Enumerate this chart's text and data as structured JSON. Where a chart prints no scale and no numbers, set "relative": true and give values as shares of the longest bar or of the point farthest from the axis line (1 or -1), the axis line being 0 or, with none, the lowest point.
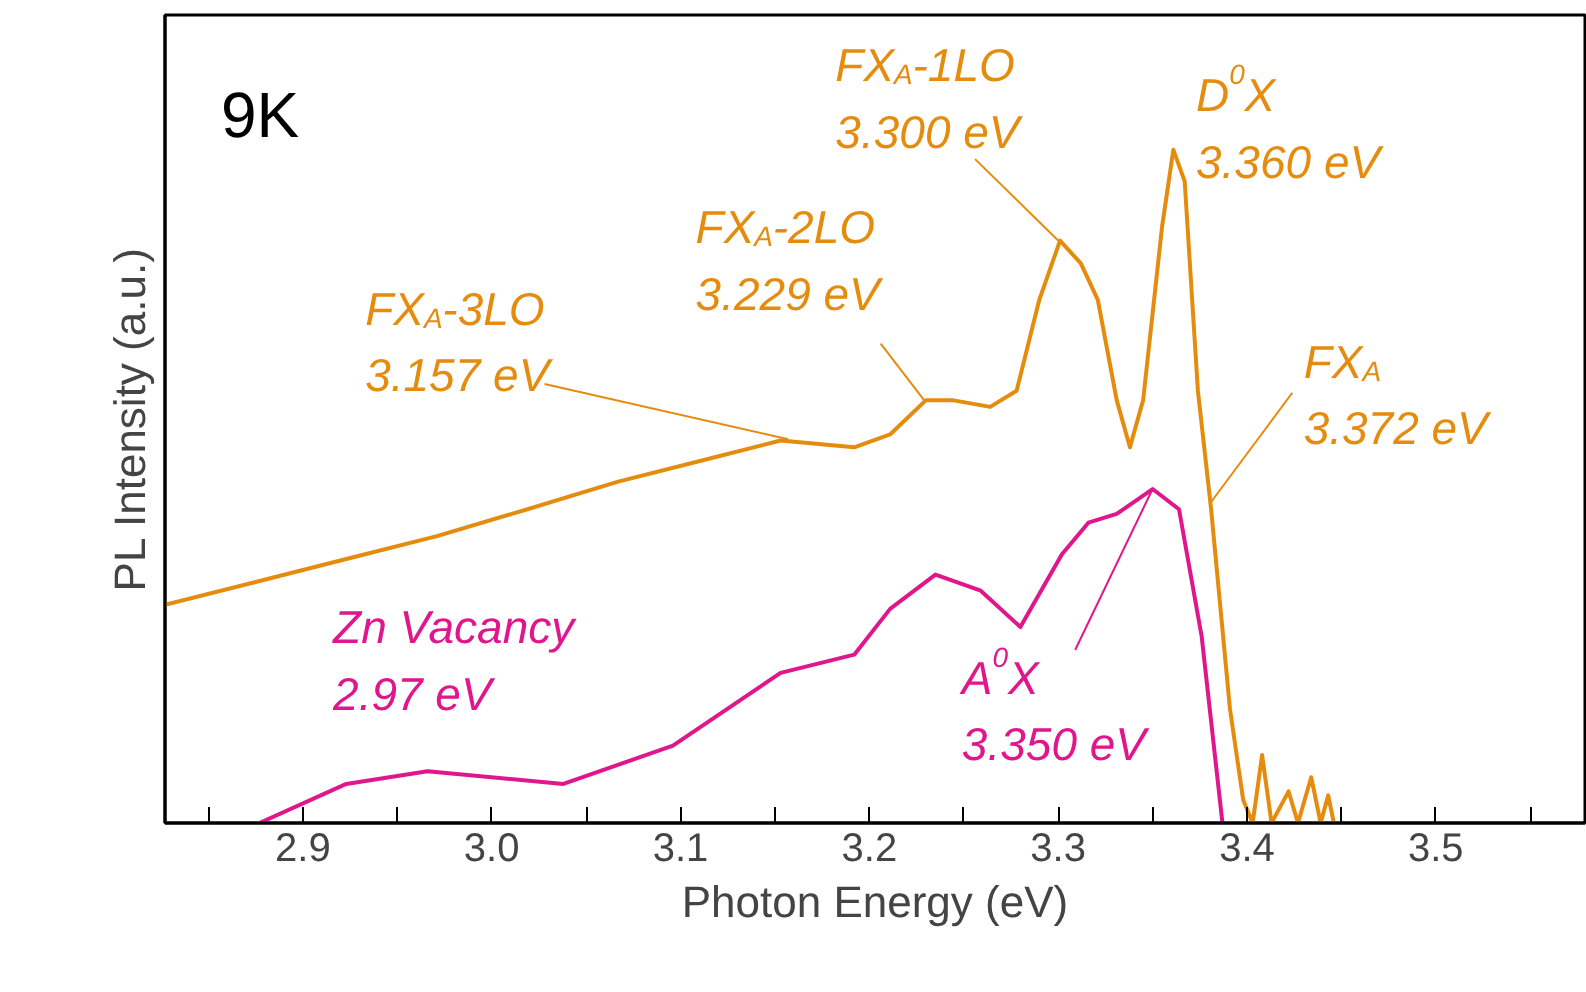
{
  "chart_data": {
    "type": "line",
    "relative": true,
    "xlabel": "Photon Energy (eV)",
    "ylabel": "PL Intensity (a.u.)",
    "xlim": [
      2.827,
      3.579
    ],
    "xticks": [
      {
        "value": 2.85,
        "label": null
      },
      2.9,
      {
        "value": 2.95,
        "label": null
      },
      {
        "value": 3.0,
        "label": "3.0"
      },
      {
        "value": 3.05,
        "label": null
      },
      3.1,
      {
        "value": 3.15,
        "label": null
      },
      3.2,
      {
        "value": 3.25,
        "label": null
      },
      3.3,
      {
        "value": 3.35,
        "label": null
      },
      3.4,
      {
        "value": 3.45,
        "label": null
      },
      3.5,
      {
        "value": 3.55,
        "label": null
      }
    ],
    "series": [
      {
        "color": "#e58c0e",
        "x": [
          2.827,
          2.875,
          2.923,
          2.971,
          3.019,
          3.067,
          3.115,
          3.153,
          3.192,
          3.211,
          3.23,
          3.244,
          3.264,
          3.278,
          3.29,
          3.301,
          3.312,
          3.321,
          3.331,
          3.338,
          3.345,
          3.355,
          3.361,
          3.367,
          3.374,
          3.381,
          3.391,
          3.398,
          3.403,
          3.408,
          3.413,
          3.422,
          3.427,
          3.434,
          3.439,
          3.443,
          3.446
        ],
        "values": [
          0.324,
          0.358,
          0.392,
          0.426,
          0.466,
          0.507,
          0.541,
          0.568,
          0.558,
          0.577,
          0.628,
          0.628,
          0.618,
          0.642,
          0.777,
          0.865,
          0.831,
          0.777,
          0.628,
          0.558,
          0.628,
          0.885,
          1.0,
          0.953,
          0.642,
          0.466,
          0.169,
          0.034,
          0,
          0.101,
          0,
          0.047,
          0,
          0.068,
          0,
          0.041,
          0
        ]
      },
      {
        "color": "#e0168c",
        "x": [
          2.877,
          2.923,
          2.966,
          3.038,
          3.096,
          3.153,
          3.192,
          3.211,
          3.235,
          3.259,
          3.28,
          3.302,
          3.316,
          3.331,
          3.35,
          3.364,
          3.376,
          3.387
        ],
        "values": [
          0,
          0.058,
          0.077,
          0.058,
          0.115,
          0.223,
          0.25,
          0.318,
          0.369,
          0.345,
          0.291,
          0.399,
          0.446,
          0.459,
          0.496,
          0.466,
          0.277,
          0
        ]
      }
    ],
    "annotations": [
      "9K",
      {
        "text": "FX$_{A}$-3LO\n3.157 eV",
        "x": 3.157,
        "y": 0.57
      },
      {
        "text": "FX$_{A}$-2LO\n3.229 eV",
        "x": 3.229,
        "y": 0.628
      },
      {
        "text": "FX$_{A}$-1LO\n3.300 eV",
        "x": 3.3,
        "y": 0.865
      },
      "D$^{0}$X\n3.360 eV",
      {
        "text": "FX$_{A}$\n3.372 eV",
        "x": 3.38,
        "y": 0.473
      },
      {
        "text": "A$^{0}$X\n3.350 eV",
        "x": 3.35,
        "y": 0.496
      },
      "Zn Vacancy\n2.97 eV"
    ]
  }
}
